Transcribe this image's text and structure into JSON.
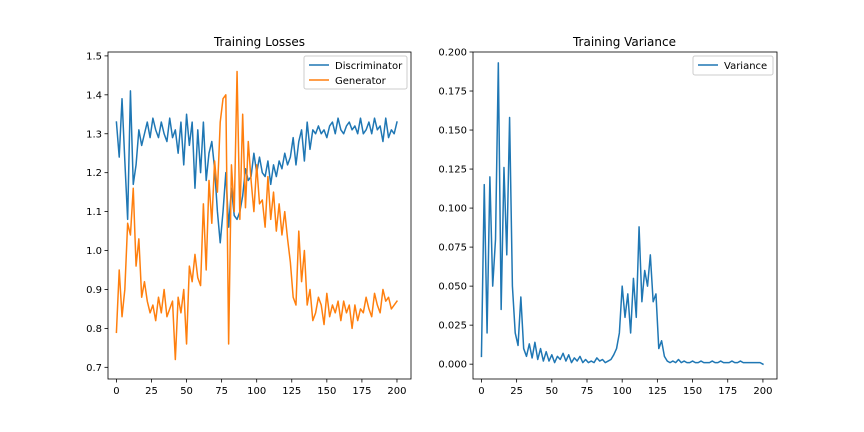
{
  "colors": {
    "disc": "#1f77b4",
    "gen": "#ff7f0e",
    "var": "#1f77b4"
  },
  "chart_data": [
    {
      "type": "line",
      "title": "Training Losses",
      "xlim": [
        -6,
        210
      ],
      "ylim": [
        0.67,
        1.51
      ],
      "xticks": [
        0,
        25,
        50,
        75,
        100,
        125,
        150,
        175,
        200
      ],
      "yticks": [
        0.7,
        0.8,
        0.9,
        1.0,
        1.1,
        1.2,
        1.3,
        1.4,
        1.5
      ],
      "ytick_labels": [
        "0.7",
        "0.8",
        "0.9",
        "1.0",
        "1.1",
        "1.2",
        "1.3",
        "1.4",
        "1.5"
      ],
      "legend_position": "top-right",
      "x": [
        0,
        2,
        4,
        6,
        8,
        10,
        12,
        14,
        16,
        18,
        20,
        22,
        24,
        26,
        28,
        30,
        32,
        34,
        36,
        38,
        40,
        42,
        44,
        46,
        48,
        50,
        52,
        54,
        56,
        58,
        60,
        62,
        64,
        66,
        68,
        70,
        72,
        74,
        76,
        78,
        80,
        82,
        84,
        86,
        88,
        90,
        92,
        94,
        96,
        98,
        100,
        102,
        104,
        106,
        108,
        110,
        112,
        114,
        116,
        118,
        120,
        122,
        124,
        126,
        128,
        130,
        132,
        134,
        136,
        138,
        140,
        142,
        144,
        146,
        148,
        150,
        152,
        154,
        156,
        158,
        160,
        162,
        164,
        166,
        168,
        170,
        172,
        174,
        176,
        178,
        180,
        182,
        184,
        186,
        188,
        190,
        192,
        194,
        196,
        198,
        200
      ],
      "series": [
        {
          "name": "Discriminator",
          "values": [
            1.33,
            1.24,
            1.39,
            1.23,
            1.08,
            1.41,
            1.17,
            1.22,
            1.31,
            1.27,
            1.3,
            1.33,
            1.29,
            1.34,
            1.31,
            1.29,
            1.33,
            1.3,
            1.28,
            1.34,
            1.29,
            1.31,
            1.25,
            1.33,
            1.22,
            1.35,
            1.27,
            1.33,
            1.16,
            1.31,
            1.2,
            1.33,
            1.18,
            1.25,
            1.28,
            1.21,
            1.1,
            1.02,
            1.1,
            1.2,
            1.06,
            1.16,
            1.09,
            1.08,
            1.1,
            1.14,
            1.21,
            1.18,
            1.19,
            1.25,
            1.2,
            1.24,
            1.2,
            1.19,
            1.23,
            1.17,
            1.22,
            1.19,
            1.23,
            1.21,
            1.25,
            1.22,
            1.24,
            1.29,
            1.22,
            1.28,
            1.31,
            1.23,
            1.33,
            1.26,
            1.31,
            1.3,
            1.32,
            1.3,
            1.31,
            1.29,
            1.32,
            1.33,
            1.3,
            1.34,
            1.31,
            1.3,
            1.32,
            1.33,
            1.31,
            1.32,
            1.3,
            1.34,
            1.3,
            1.31,
            1.33,
            1.3,
            1.34,
            1.31,
            1.32,
            1.28,
            1.34,
            1.29,
            1.31,
            1.3,
            1.33
          ]
        },
        {
          "name": "Generator",
          "values": [
            0.79,
            0.95,
            0.83,
            0.9,
            1.07,
            1.04,
            1.16,
            0.96,
            1.03,
            0.88,
            0.92,
            0.87,
            0.84,
            0.86,
            0.82,
            0.88,
            0.84,
            0.9,
            0.83,
            0.85,
            0.87,
            0.72,
            0.88,
            0.84,
            0.9,
            0.76,
            0.96,
            0.92,
            0.99,
            0.93,
            0.91,
            1.12,
            0.95,
            1.18,
            1.07,
            1.23,
            1.15,
            1.33,
            1.39,
            1.4,
            0.76,
            1.22,
            1.1,
            1.46,
            1.08,
            1.35,
            1.11,
            1.28,
            1.18,
            1.1,
            1.22,
            1.12,
            1.13,
            1.06,
            1.19,
            1.08,
            1.15,
            1.05,
            1.12,
            1.04,
            1.1,
            1.03,
            0.97,
            0.88,
            0.86,
            1.05,
            0.92,
            1.0,
            0.86,
            0.9,
            0.82,
            0.84,
            0.88,
            0.86,
            0.81,
            0.89,
            0.83,
            0.86,
            0.84,
            0.87,
            0.82,
            0.87,
            0.84,
            0.86,
            0.8,
            0.86,
            0.82,
            0.85,
            0.84,
            0.88,
            0.85,
            0.83,
            0.89,
            0.86,
            0.84,
            0.9,
            0.87,
            0.88,
            0.85,
            0.86,
            0.87
          ]
        }
      ]
    },
    {
      "type": "line",
      "title": "Training Variance",
      "xlim": [
        -6,
        210
      ],
      "ylim": [
        -0.0095,
        0.2
      ],
      "xticks": [
        0,
        25,
        50,
        75,
        100,
        125,
        150,
        175,
        200
      ],
      "yticks": [
        0,
        0.025,
        0.05,
        0.075,
        0.1,
        0.125,
        0.15,
        0.175,
        0.2
      ],
      "ytick_labels": [
        "0.000",
        "0.025",
        "0.050",
        "0.075",
        "0.100",
        "0.125",
        "0.150",
        "0.175",
        "0.200"
      ],
      "legend_position": "top-right",
      "x": [
        0,
        2,
        4,
        6,
        8,
        10,
        12,
        14,
        16,
        18,
        20,
        22,
        24,
        26,
        28,
        30,
        32,
        34,
        36,
        38,
        40,
        42,
        44,
        46,
        48,
        50,
        52,
        54,
        56,
        58,
        60,
        62,
        64,
        66,
        68,
        70,
        72,
        74,
        76,
        78,
        80,
        82,
        84,
        86,
        88,
        90,
        92,
        94,
        96,
        98,
        100,
        102,
        104,
        106,
        108,
        110,
        112,
        114,
        116,
        118,
        120,
        122,
        124,
        126,
        128,
        130,
        132,
        134,
        136,
        138,
        140,
        142,
        144,
        146,
        148,
        150,
        152,
        154,
        156,
        158,
        160,
        162,
        164,
        166,
        168,
        170,
        172,
        174,
        176,
        178,
        180,
        182,
        184,
        186,
        188,
        190,
        192,
        194,
        196,
        198,
        200
      ],
      "series": [
        {
          "name": "Variance",
          "values": [
            0.005,
            0.115,
            0.02,
            0.12,
            0.05,
            0.08,
            0.193,
            0.035,
            0.126,
            0.07,
            0.158,
            0.05,
            0.02,
            0.012,
            0.043,
            0.01,
            0.005,
            0.013,
            0.004,
            0.014,
            0.003,
            0.01,
            0.002,
            0.008,
            0.002,
            0.006,
            0.001,
            0.005,
            0.003,
            0.007,
            0.002,
            0.006,
            0.001,
            0.004,
            0.002,
            0.005,
            0.001,
            0.003,
            0.001,
            0.002,
            0.001,
            0.004,
            0.002,
            0.003,
            0.001,
            0.002,
            0.003,
            0.006,
            0.01,
            0.02,
            0.05,
            0.03,
            0.045,
            0.02,
            0.055,
            0.03,
            0.088,
            0.04,
            0.06,
            0.05,
            0.07,
            0.04,
            0.045,
            0.01,
            0.015,
            0.005,
            0.002,
            0.001,
            0.002,
            0.001,
            0.003,
            0.001,
            0.002,
            0.001,
            0.001,
            0.002,
            0.001,
            0.001,
            0.002,
            0.001,
            0.001,
            0.001,
            0.002,
            0.001,
            0.001,
            0.002,
            0.001,
            0.001,
            0.001,
            0.002,
            0.001,
            0.001,
            0.002,
            0.001,
            0.001,
            0.001,
            0.001,
            0.001,
            0.001,
            0.001,
            0.0
          ]
        }
      ]
    }
  ]
}
